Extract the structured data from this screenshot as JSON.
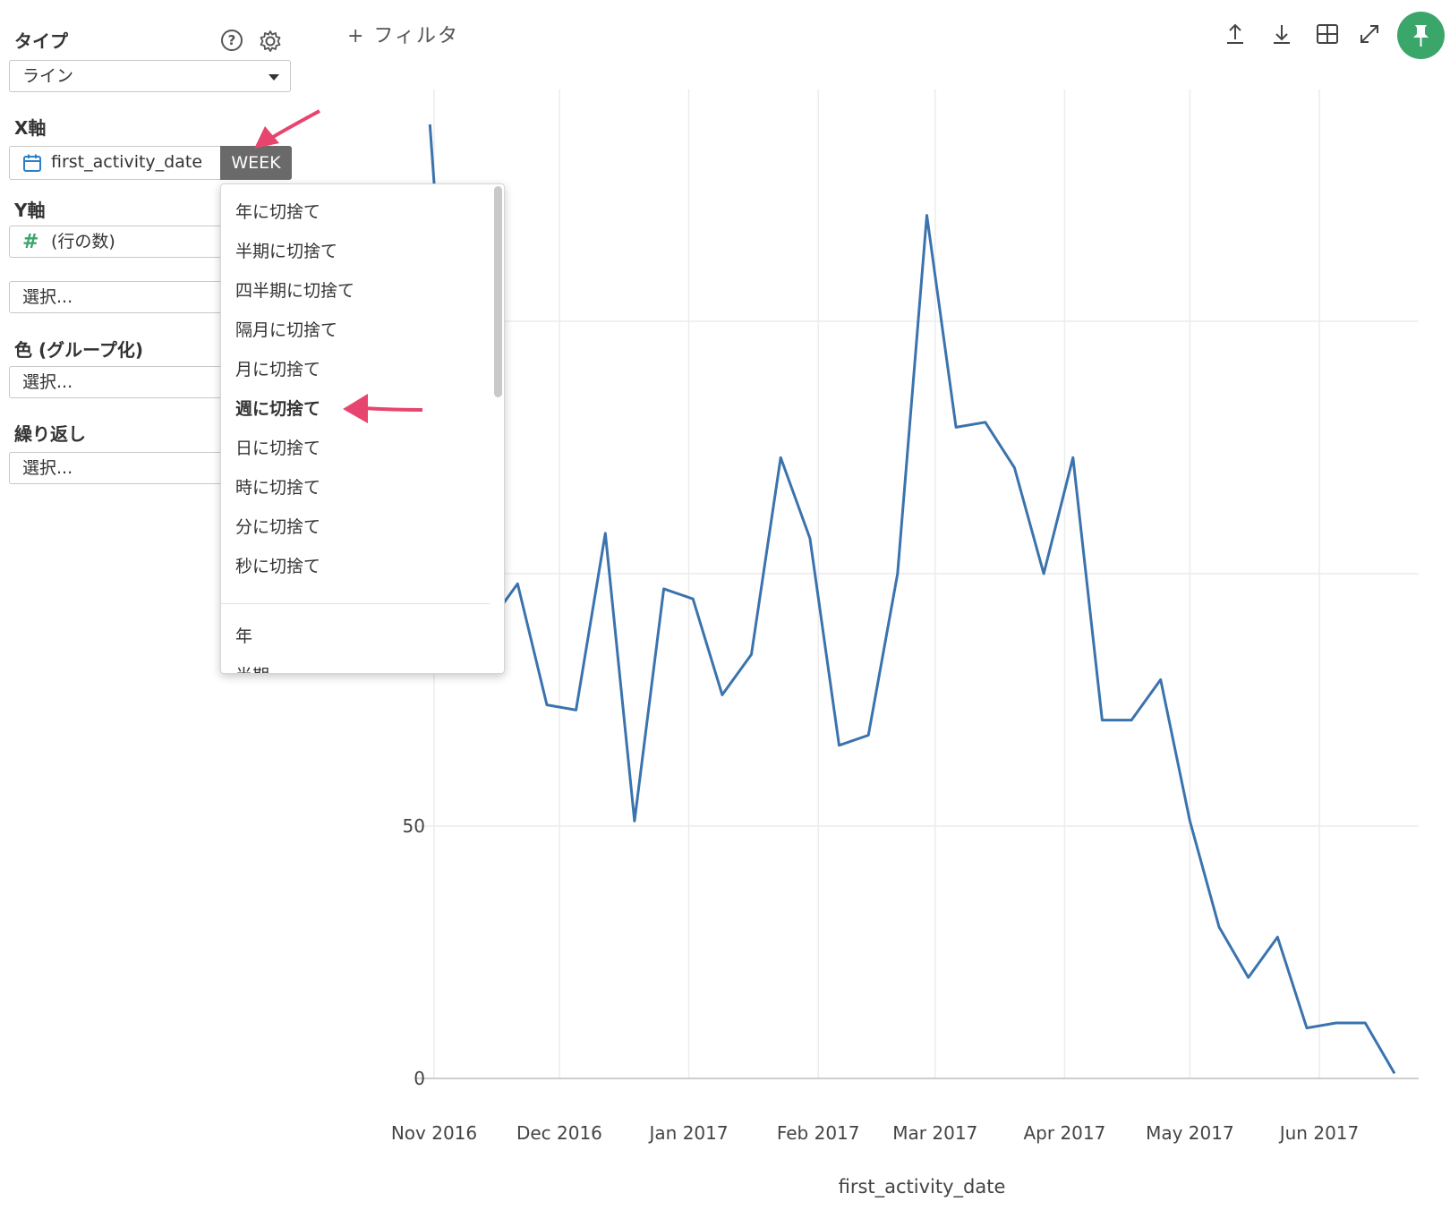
{
  "sidebar": {
    "type_label": "タイプ",
    "type_value": "ライン",
    "x_label": "X軸",
    "x_field": "first_activity_date",
    "x_badge": "WEEK",
    "y_label": "Y軸",
    "y_field": "(行の数)",
    "y_select_placeholder": "選択...",
    "color_label": "色 (グループ化)",
    "color_placeholder": "選択...",
    "repeat_label": "繰り返し",
    "repeat_placeholder": "選択..."
  },
  "topbar": {
    "filter_label": "+ フィルタ"
  },
  "dropdown": {
    "items": [
      "年に切捨て",
      "半期に切捨て",
      "四半期に切捨て",
      "隔月に切捨て",
      "月に切捨て",
      "週に切捨て",
      "日に切捨て",
      "時に切捨て",
      "分に切捨て",
      "秒に切捨て"
    ],
    "selected": "週に切捨て",
    "after_sep": [
      "年",
      "半期"
    ]
  },
  "colors": {
    "line": "#3a73ad",
    "annotation_arrow": "#e8456e",
    "pin_button": "#3aa66a"
  },
  "chart_data": {
    "type": "line",
    "xlabel": "first_activity_date",
    "ylabel": "",
    "x_ticks": [
      "Nov 2016",
      "Dec 2016",
      "Jan 2017",
      "Feb 2017",
      "Mar 2017",
      "Apr 2017",
      "May 2017",
      "Jun 2017"
    ],
    "y_ticks": [
      0,
      50
    ],
    "ylim": [
      0,
      190
    ],
    "series": [
      {
        "x": [
          "2016-10-31",
          "2016-11-07",
          "2016-11-14",
          "2016-11-21",
          "2016-11-28",
          "2016-12-05",
          "2016-12-12",
          "2016-12-19",
          "2016-12-26",
          "2017-01-02",
          "2017-01-09",
          "2017-01-16",
          "2017-01-23",
          "2017-01-30",
          "2017-02-06",
          "2017-02-13",
          "2017-02-20",
          "2017-02-27",
          "2017-03-06",
          "2017-03-13",
          "2017-03-20",
          "2017-03-27",
          "2017-04-03",
          "2017-04-10",
          "2017-04-17",
          "2017-04-24",
          "2017-05-01",
          "2017-05-08",
          "2017-05-15",
          "2017-05-22",
          "2017-05-29",
          "2017-06-05",
          "2017-06-12",
          "2017-06-19"
        ],
        "y": [
          189,
          108,
          90,
          98,
          74,
          73,
          108,
          51,
          97,
          95,
          76,
          84,
          123,
          107,
          66,
          68,
          100,
          171,
          129,
          130,
          121,
          100,
          123,
          71,
          71,
          79,
          51,
          30,
          20,
          28,
          10,
          11,
          11,
          1
        ]
      }
    ]
  }
}
